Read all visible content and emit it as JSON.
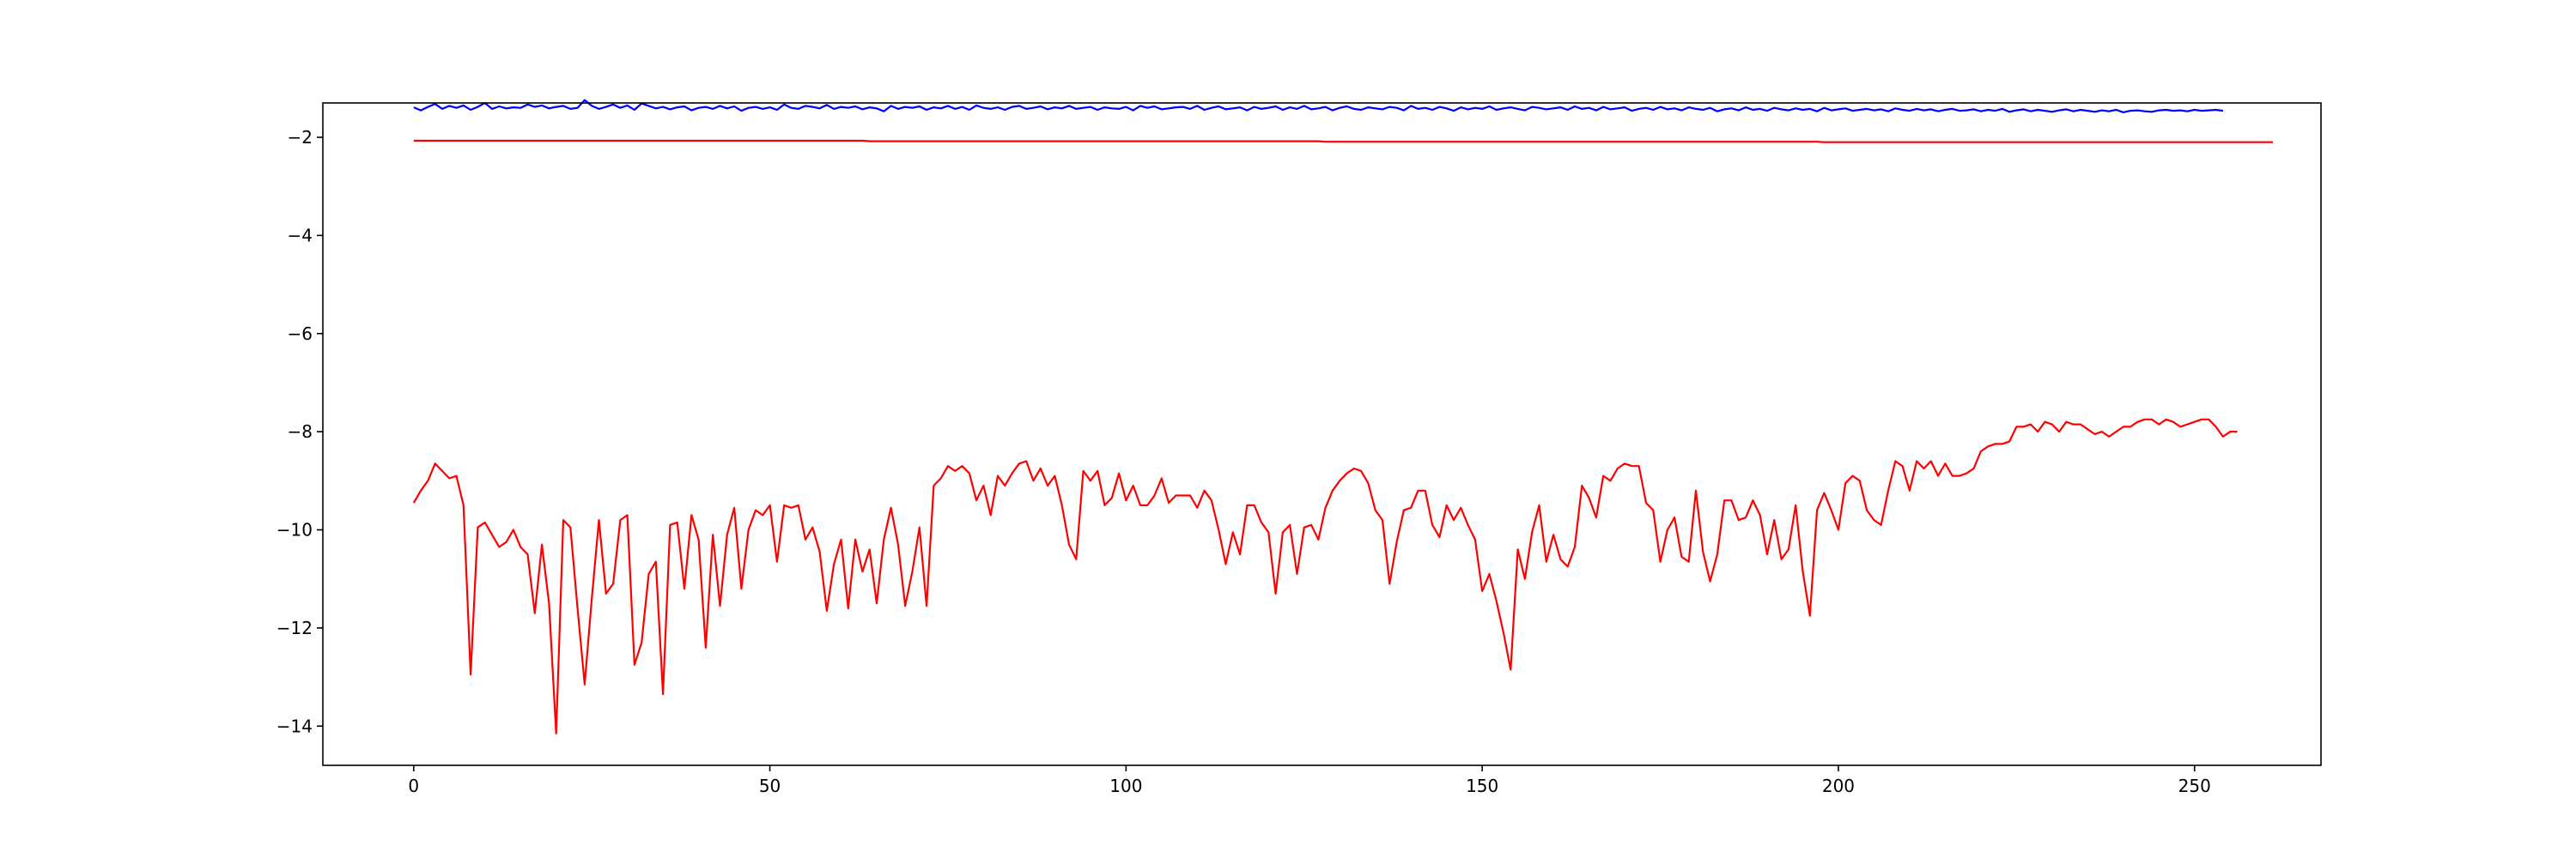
{
  "chart_data": {
    "type": "line",
    "title": "",
    "xlabel": "",
    "ylabel": "",
    "xlim": [
      -12.75,
      267.75
    ],
    "ylim": [
      -14.8,
      -1.3
    ],
    "grid": false,
    "legend": "none",
    "x_ticks": [
      0,
      50,
      100,
      150,
      200,
      250
    ],
    "x_tick_labels": [
      "0",
      "50",
      "100",
      "150",
      "200",
      "250"
    ],
    "y_ticks": [
      -2,
      -4,
      -6,
      -8,
      -10,
      -12,
      -14
    ],
    "y_tick_labels": [
      "−2",
      "−4",
      "−6",
      "−8",
      "−10",
      "−12",
      "−14"
    ],
    "series": [
      {
        "color": "#0000ff",
        "x_start": 0,
        "x_step": 1,
        "values": [
          -1.39,
          -1.45,
          -1.38,
          -1.32,
          -1.42,
          -1.36,
          -1.4,
          -1.35,
          -1.44,
          -1.38,
          -1.3,
          -1.42,
          -1.37,
          -1.41,
          -1.39,
          -1.4,
          -1.33,
          -1.38,
          -1.35,
          -1.41,
          -1.38,
          -1.36,
          -1.42,
          -1.4,
          -1.24,
          -1.36,
          -1.42,
          -1.38,
          -1.33,
          -1.4,
          -1.35,
          -1.44,
          -1.31,
          -1.36,
          -1.41,
          -1.38,
          -1.43,
          -1.39,
          -1.37,
          -1.45,
          -1.4,
          -1.38,
          -1.42,
          -1.36,
          -1.41,
          -1.37,
          -1.46,
          -1.4,
          -1.38,
          -1.42,
          -1.39,
          -1.44,
          -1.33,
          -1.4,
          -1.42,
          -1.36,
          -1.38,
          -1.41,
          -1.34,
          -1.42,
          -1.38,
          -1.4,
          -1.37,
          -1.43,
          -1.39,
          -1.41,
          -1.47,
          -1.36,
          -1.42,
          -1.38,
          -1.4,
          -1.37,
          -1.44,
          -1.39,
          -1.41,
          -1.36,
          -1.42,
          -1.38,
          -1.44,
          -1.35,
          -1.4,
          -1.42,
          -1.39,
          -1.44,
          -1.38,
          -1.36,
          -1.42,
          -1.4,
          -1.37,
          -1.43,
          -1.39,
          -1.41,
          -1.36,
          -1.42,
          -1.4,
          -1.38,
          -1.44,
          -1.39,
          -1.41,
          -1.42,
          -1.38,
          -1.45,
          -1.36,
          -1.4,
          -1.37,
          -1.43,
          -1.41,
          -1.39,
          -1.38,
          -1.42,
          -1.36,
          -1.44,
          -1.4,
          -1.37,
          -1.43,
          -1.41,
          -1.39,
          -1.45,
          -1.38,
          -1.42,
          -1.4,
          -1.37,
          -1.44,
          -1.39,
          -1.42,
          -1.36,
          -1.43,
          -1.41,
          -1.38,
          -1.45,
          -1.4,
          -1.37,
          -1.42,
          -1.44,
          -1.39,
          -1.41,
          -1.43,
          -1.38,
          -1.4,
          -1.45,
          -1.36,
          -1.42,
          -1.4,
          -1.44,
          -1.38,
          -1.41,
          -1.46,
          -1.39,
          -1.43,
          -1.4,
          -1.42,
          -1.37,
          -1.44,
          -1.41,
          -1.39,
          -1.42,
          -1.45,
          -1.38,
          -1.4,
          -1.43,
          -1.41,
          -1.39,
          -1.44,
          -1.37,
          -1.42,
          -1.4,
          -1.45,
          -1.38,
          -1.43,
          -1.41,
          -1.39,
          -1.46,
          -1.42,
          -1.4,
          -1.44,
          -1.38,
          -1.43,
          -1.41,
          -1.45,
          -1.39,
          -1.42,
          -1.44,
          -1.4,
          -1.47,
          -1.43,
          -1.41,
          -1.45,
          -1.39,
          -1.44,
          -1.42,
          -1.46,
          -1.4,
          -1.43,
          -1.45,
          -1.41,
          -1.44,
          -1.42,
          -1.47,
          -1.4,
          -1.45,
          -1.43,
          -1.41,
          -1.46,
          -1.44,
          -1.42,
          -1.45,
          -1.43,
          -1.47,
          -1.41,
          -1.44,
          -1.46,
          -1.42,
          -1.45,
          -1.43,
          -1.47,
          -1.44,
          -1.42,
          -1.46,
          -1.45,
          -1.43,
          -1.47,
          -1.44,
          -1.46,
          -1.42,
          -1.48,
          -1.45,
          -1.43,
          -1.47,
          -1.44,
          -1.46,
          -1.48,
          -1.45,
          -1.43,
          -1.47,
          -1.44,
          -1.46,
          -1.48,
          -1.45,
          -1.47,
          -1.44,
          -1.49,
          -1.46,
          -1.45,
          -1.47,
          -1.48,
          -1.45,
          -1.44,
          -1.46,
          -1.45,
          -1.47,
          -1.44,
          -1.46,
          -1.45,
          -1.44,
          -1.46
        ]
      },
      {
        "color": "#ff0000",
        "x_start": 0,
        "x_step": 1,
        "values": [
          -2.07,
          -2.07,
          -2.07,
          -2.07,
          -2.07,
          -2.07,
          -2.07,
          -2.07,
          -2.07,
          -2.07,
          -2.07,
          -2.07,
          -2.07,
          -2.07,
          -2.07,
          -2.07,
          -2.07,
          -2.07,
          -2.07,
          -2.07,
          -2.07,
          -2.07,
          -2.07,
          -2.07,
          -2.07,
          -2.07,
          -2.07,
          -2.07,
          -2.07,
          -2.07,
          -2.07,
          -2.07,
          -2.07,
          -2.07,
          -2.07,
          -2.07,
          -2.07,
          -2.07,
          -2.07,
          -2.07,
          -2.07,
          -2.07,
          -2.07,
          -2.07,
          -2.07,
          -2.07,
          -2.07,
          -2.07,
          -2.07,
          -2.07,
          -2.07,
          -2.07,
          -2.07,
          -2.07,
          -2.07,
          -2.07,
          -2.07,
          -2.07,
          -2.07,
          -2.07,
          -2.07,
          -2.07,
          -2.07,
          -2.07,
          -2.08,
          -2.08,
          -2.08,
          -2.08,
          -2.08,
          -2.08,
          -2.08,
          -2.08,
          -2.08,
          -2.08,
          -2.08,
          -2.08,
          -2.08,
          -2.08,
          -2.08,
          -2.08,
          -2.08,
          -2.08,
          -2.08,
          -2.08,
          -2.08,
          -2.08,
          -2.08,
          -2.08,
          -2.08,
          -2.08,
          -2.08,
          -2.08,
          -2.08,
          -2.08,
          -2.08,
          -2.08,
          -2.08,
          -2.08,
          -2.08,
          -2.08,
          -2.08,
          -2.08,
          -2.08,
          -2.08,
          -2.08,
          -2.08,
          -2.08,
          -2.08,
          -2.08,
          -2.08,
          -2.08,
          -2.08,
          -2.08,
          -2.08,
          -2.08,
          -2.08,
          -2.08,
          -2.08,
          -2.08,
          -2.08,
          -2.08,
          -2.08,
          -2.08,
          -2.08,
          -2.08,
          -2.08,
          -2.08,
          -2.08,
          -2.09,
          -2.09,
          -2.09,
          -2.09,
          -2.09,
          -2.09,
          -2.09,
          -2.09,
          -2.09,
          -2.09,
          -2.09,
          -2.09,
          -2.09,
          -2.09,
          -2.09,
          -2.09,
          -2.09,
          -2.09,
          -2.09,
          -2.09,
          -2.09,
          -2.09,
          -2.09,
          -2.09,
          -2.09,
          -2.09,
          -2.09,
          -2.09,
          -2.09,
          -2.09,
          -2.09,
          -2.09,
          -2.09,
          -2.09,
          -2.09,
          -2.09,
          -2.09,
          -2.09,
          -2.09,
          -2.09,
          -2.09,
          -2.09,
          -2.09,
          -2.09,
          -2.09,
          -2.09,
          -2.09,
          -2.09,
          -2.09,
          -2.09,
          -2.09,
          -2.09,
          -2.09,
          -2.09,
          -2.09,
          -2.09,
          -2.09,
          -2.09,
          -2.09,
          -2.09,
          -2.09,
          -2.09,
          -2.09,
          -2.09,
          -2.09,
          -2.09,
          -2.09,
          -2.09,
          -2.09,
          -2.09,
          -2.1,
          -2.1,
          -2.1,
          -2.1,
          -2.1,
          -2.1,
          -2.1,
          -2.1,
          -2.1,
          -2.1,
          -2.1,
          -2.1,
          -2.1,
          -2.1,
          -2.1,
          -2.1,
          -2.1,
          -2.1,
          -2.1,
          -2.1,
          -2.1,
          -2.1,
          -2.1,
          -2.1,
          -2.1,
          -2.1,
          -2.1,
          -2.1,
          -2.1,
          -2.1,
          -2.1,
          -2.1,
          -2.1,
          -2.1,
          -2.1,
          -2.1,
          -2.1,
          -2.1,
          -2.1,
          -2.1,
          -2.1,
          -2.1,
          -2.1,
          -2.1,
          -2.1,
          -2.1,
          -2.1,
          -2.1,
          -2.1,
          -2.1,
          -2.1,
          -2.1,
          -2.1,
          -2.1,
          -2.1,
          -2.1,
          -2.1,
          -2.1,
          -2.1,
          -2.1,
          -2.1,
          -2.1,
          -2.1,
          -2.1
        ]
      },
      {
        "color": "#ff0000",
        "x_start": 0,
        "x_step": 1,
        "values": [
          -9.45,
          -9.2,
          -9.0,
          -8.65,
          -8.8,
          -8.95,
          -8.9,
          -9.5,
          -12.95,
          -9.95,
          -9.85,
          -10.1,
          -10.35,
          -10.25,
          -10.0,
          -10.35,
          -10.5,
          -11.7,
          -10.3,
          -11.5,
          -14.15,
          -9.8,
          -9.95,
          -11.6,
          -13.15,
          -11.4,
          -9.8,
          -11.3,
          -11.1,
          -9.8,
          -9.7,
          -12.75,
          -12.3,
          -10.9,
          -10.65,
          -13.35,
          -9.9,
          -9.85,
          -11.2,
          -9.7,
          -10.2,
          -12.4,
          -10.1,
          -11.55,
          -10.1,
          -9.55,
          -11.2,
          -10.0,
          -9.6,
          -9.7,
          -9.5,
          -10.65,
          -9.5,
          -9.55,
          -9.5,
          -10.2,
          -9.95,
          -10.45,
          -11.65,
          -10.7,
          -10.2,
          -11.6,
          -10.2,
          -10.85,
          -10.4,
          -11.5,
          -10.2,
          -9.55,
          -10.3,
          -11.55,
          -10.85,
          -9.95,
          -11.55,
          -9.1,
          -8.95,
          -8.7,
          -8.8,
          -8.7,
          -8.85,
          -9.4,
          -9.1,
          -9.7,
          -8.9,
          -9.1,
          -8.85,
          -8.65,
          -8.6,
          -9.0,
          -8.75,
          -9.1,
          -8.9,
          -9.5,
          -10.3,
          -10.6,
          -8.8,
          -9.0,
          -8.8,
          -9.5,
          -9.35,
          -8.85,
          -9.4,
          -9.1,
          -9.5,
          -9.5,
          -9.3,
          -8.95,
          -9.45,
          -9.3,
          -9.3,
          -9.3,
          -9.55,
          -9.2,
          -9.4,
          -10.0,
          -10.7,
          -10.05,
          -10.5,
          -9.5,
          -9.5,
          -9.85,
          -10.05,
          -11.3,
          -10.05,
          -9.9,
          -10.9,
          -9.95,
          -9.9,
          -10.2,
          -9.55,
          -9.2,
          -9.0,
          -8.85,
          -8.75,
          -8.8,
          -9.05,
          -9.6,
          -9.8,
          -11.1,
          -10.25,
          -9.6,
          -9.55,
          -9.2,
          -9.2,
          -9.9,
          -10.15,
          -9.5,
          -9.8,
          -9.55,
          -9.9,
          -10.2,
          -11.25,
          -10.9,
          -11.45,
          -12.1,
          -12.85,
          -10.4,
          -11.0,
          -10.05,
          -9.5,
          -10.65,
          -10.1,
          -10.6,
          -10.75,
          -10.35,
          -9.1,
          -9.35,
          -9.75,
          -8.9,
          -9.0,
          -8.75,
          -8.65,
          -8.7,
          -8.7,
          -9.45,
          -9.6,
          -10.65,
          -10.0,
          -9.75,
          -10.55,
          -10.65,
          -9.2,
          -10.45,
          -11.05,
          -10.5,
          -9.4,
          -9.4,
          -9.8,
          -9.75,
          -9.4,
          -9.7,
          -10.5,
          -9.8,
          -10.6,
          -10.4,
          -9.5,
          -10.85,
          -11.75,
          -9.6,
          -9.25,
          -9.6,
          -10.0,
          -9.05,
          -8.9,
          -9.0,
          -9.6,
          -9.8,
          -9.9,
          -9.2,
          -8.6,
          -8.7,
          -9.2,
          -8.6,
          -8.75,
          -8.6,
          -8.9,
          -8.65,
          -8.9,
          -8.9,
          -8.85,
          -8.75,
          -8.4,
          -8.3,
          -8.25,
          -8.25,
          -8.2,
          -7.9,
          -7.9,
          -7.85,
          -8.0,
          -7.8,
          -7.85,
          -8.0,
          -7.8,
          -7.85,
          -7.85,
          -7.95,
          -8.05,
          -8.0,
          -8.1,
          -8.0,
          -7.9,
          -7.9,
          -7.8,
          -7.75,
          -7.75,
          -7.85,
          -7.75,
          -7.8,
          -7.9,
          -7.85,
          -7.8,
          -7.75,
          -7.75,
          -7.9,
          -8.1,
          -8.0,
          -8.0
        ]
      }
    ]
  }
}
